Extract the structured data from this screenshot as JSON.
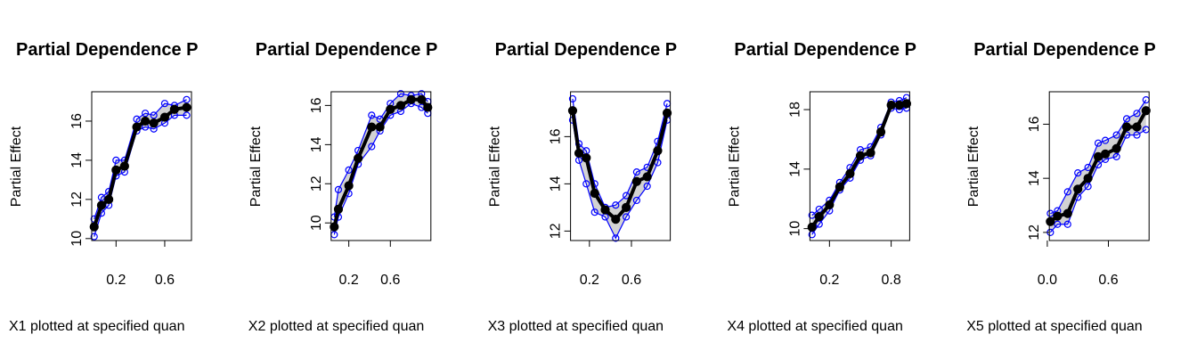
{
  "chart_data": [
    {
      "type": "line",
      "title": "Partial Dependence P",
      "y_label": "Partial Effect",
      "x_label": "X1 plotted at specified quan",
      "x": [
        0.02,
        0.08,
        0.14,
        0.2,
        0.27,
        0.37,
        0.44,
        0.51,
        0.6,
        0.68,
        0.78
      ],
      "series": [
        {
          "color": "#0000ff",
          "values": [
            11.0,
            12.1,
            12.4,
            14.0,
            14.0,
            16.1,
            16.4,
            16.3,
            16.9,
            16.8,
            17.1
          ]
        },
        {
          "color": "#0000ff",
          "values": [
            10.1,
            11.3,
            11.7,
            13.2,
            13.4,
            15.5,
            15.7,
            15.6,
            15.9,
            16.3,
            16.3
          ]
        },
        {
          "color": "#000000",
          "values": [
            10.6,
            11.7,
            12.0,
            13.5,
            13.7,
            15.7,
            16.0,
            15.9,
            16.2,
            16.6,
            16.7
          ]
        }
      ],
      "xlim": [
        0,
        0.82
      ],
      "xticks": [
        0.2,
        0.6
      ],
      "ylim": [
        9.9,
        17.5
      ],
      "yticks": [
        10,
        12,
        14,
        16
      ],
      "grid": false
    },
    {
      "type": "line",
      "title": "Partial Dependence P",
      "y_label": "Partial Effect",
      "x_label": "X2 plotted at specified quan",
      "x": [
        0.06,
        0.1,
        0.2,
        0.29,
        0.42,
        0.5,
        0.6,
        0.7,
        0.8,
        0.9,
        0.96
      ],
      "series": [
        {
          "color": "#0000ff",
          "values": [
            10.3,
            11.7,
            12.7,
            13.7,
            15.5,
            15.3,
            16.1,
            16.6,
            16.5,
            16.6,
            16.2
          ]
        },
        {
          "color": "#0000ff",
          "values": [
            9.4,
            10.3,
            11.5,
            13.0,
            13.9,
            14.7,
            15.5,
            15.7,
            16.1,
            15.9,
            15.6
          ]
        },
        {
          "color": "#000000",
          "values": [
            9.8,
            10.7,
            11.9,
            13.3,
            14.9,
            14.9,
            15.8,
            16.0,
            16.3,
            16.3,
            15.9
          ]
        }
      ],
      "xlim": [
        0.03,
        0.99
      ],
      "xticks": [
        0.2,
        0.6
      ],
      "ylim": [
        9.1,
        16.7
      ],
      "yticks": [
        10,
        12,
        14,
        16
      ],
      "grid": false
    },
    {
      "type": "line",
      "title": "Partial Dependence P",
      "y_label": "Partial Effect",
      "x_label": "X3 plotted at specified quan",
      "x": [
        0.04,
        0.1,
        0.17,
        0.25,
        0.35,
        0.45,
        0.55,
        0.65,
        0.75,
        0.85,
        0.94
      ],
      "series": [
        {
          "color": "#0000ff",
          "values": [
            17.6,
            15.7,
            15.4,
            14.0,
            13.0,
            13.1,
            13.5,
            14.5,
            14.7,
            15.8,
            17.4
          ]
        },
        {
          "color": "#0000ff",
          "values": [
            16.7,
            15.0,
            14.0,
            12.8,
            12.6,
            11.7,
            12.6,
            13.3,
            13.9,
            14.9,
            16.7
          ]
        },
        {
          "color": "#000000",
          "values": [
            17.1,
            15.3,
            15.1,
            13.6,
            12.9,
            12.5,
            13.0,
            14.1,
            14.3,
            15.4,
            17.0
          ]
        }
      ],
      "xlim": [
        0.02,
        0.97
      ],
      "xticks": [
        0.2,
        0.6
      ],
      "ylim": [
        11.6,
        17.9
      ],
      "yticks": [
        12,
        14,
        16
      ],
      "grid": false
    },
    {
      "type": "line",
      "title": "Partial Dependence P",
      "y_label": "Partial Effect",
      "x_label": "X4 plotted at specified quan",
      "x": [
        0.03,
        0.1,
        0.2,
        0.3,
        0.4,
        0.5,
        0.6,
        0.7,
        0.8,
        0.88,
        0.95
      ],
      "series": [
        {
          "color": "#0000ff",
          "values": [
            10.9,
            11.3,
            11.9,
            13.1,
            14.1,
            15.3,
            15.5,
            16.8,
            18.5,
            18.6,
            18.8
          ]
        },
        {
          "color": "#0000ff",
          "values": [
            9.6,
            10.3,
            11.2,
            12.6,
            13.4,
            14.6,
            14.9,
            16.3,
            18.1,
            18.0,
            18.1
          ]
        },
        {
          "color": "#000000",
          "values": [
            10.1,
            10.8,
            11.6,
            12.8,
            13.7,
            14.9,
            15.1,
            16.5,
            18.3,
            18.3,
            18.4
          ]
        }
      ],
      "xlim": [
        0.01,
        0.98
      ],
      "xticks": [
        0.2,
        0.8
      ],
      "ylim": [
        9.2,
        19.2
      ],
      "yticks": [
        10,
        14,
        18
      ],
      "grid": false
    },
    {
      "type": "line",
      "title": "Partial Dependence P",
      "y_label": "Partial Effect",
      "x_label": "X5 plotted at specified quan",
      "x": [
        0.03,
        0.1,
        0.2,
        0.3,
        0.4,
        0.5,
        0.57,
        0.68,
        0.78,
        0.88,
        0.97
      ],
      "series": [
        {
          "color": "#0000ff",
          "values": [
            12.7,
            12.8,
            13.5,
            14.2,
            14.4,
            15.3,
            15.4,
            15.6,
            16.2,
            16.4,
            16.9
          ]
        },
        {
          "color": "#0000ff",
          "values": [
            12.0,
            12.3,
            12.3,
            13.3,
            13.7,
            14.5,
            14.7,
            14.8,
            15.6,
            15.6,
            15.8
          ]
        },
        {
          "color": "#000000",
          "values": [
            12.4,
            12.6,
            12.7,
            13.6,
            14.0,
            14.8,
            14.9,
            15.1,
            15.9,
            15.9,
            16.5
          ]
        }
      ],
      "xlim": [
        0.02,
        1.0
      ],
      "xticks": [
        {
          "value": 0,
          "label": "0.0"
        },
        0.6
      ],
      "ylim": [
        11.7,
        17.2
      ],
      "yticks": [
        12,
        14,
        16
      ],
      "grid": false
    }
  ]
}
